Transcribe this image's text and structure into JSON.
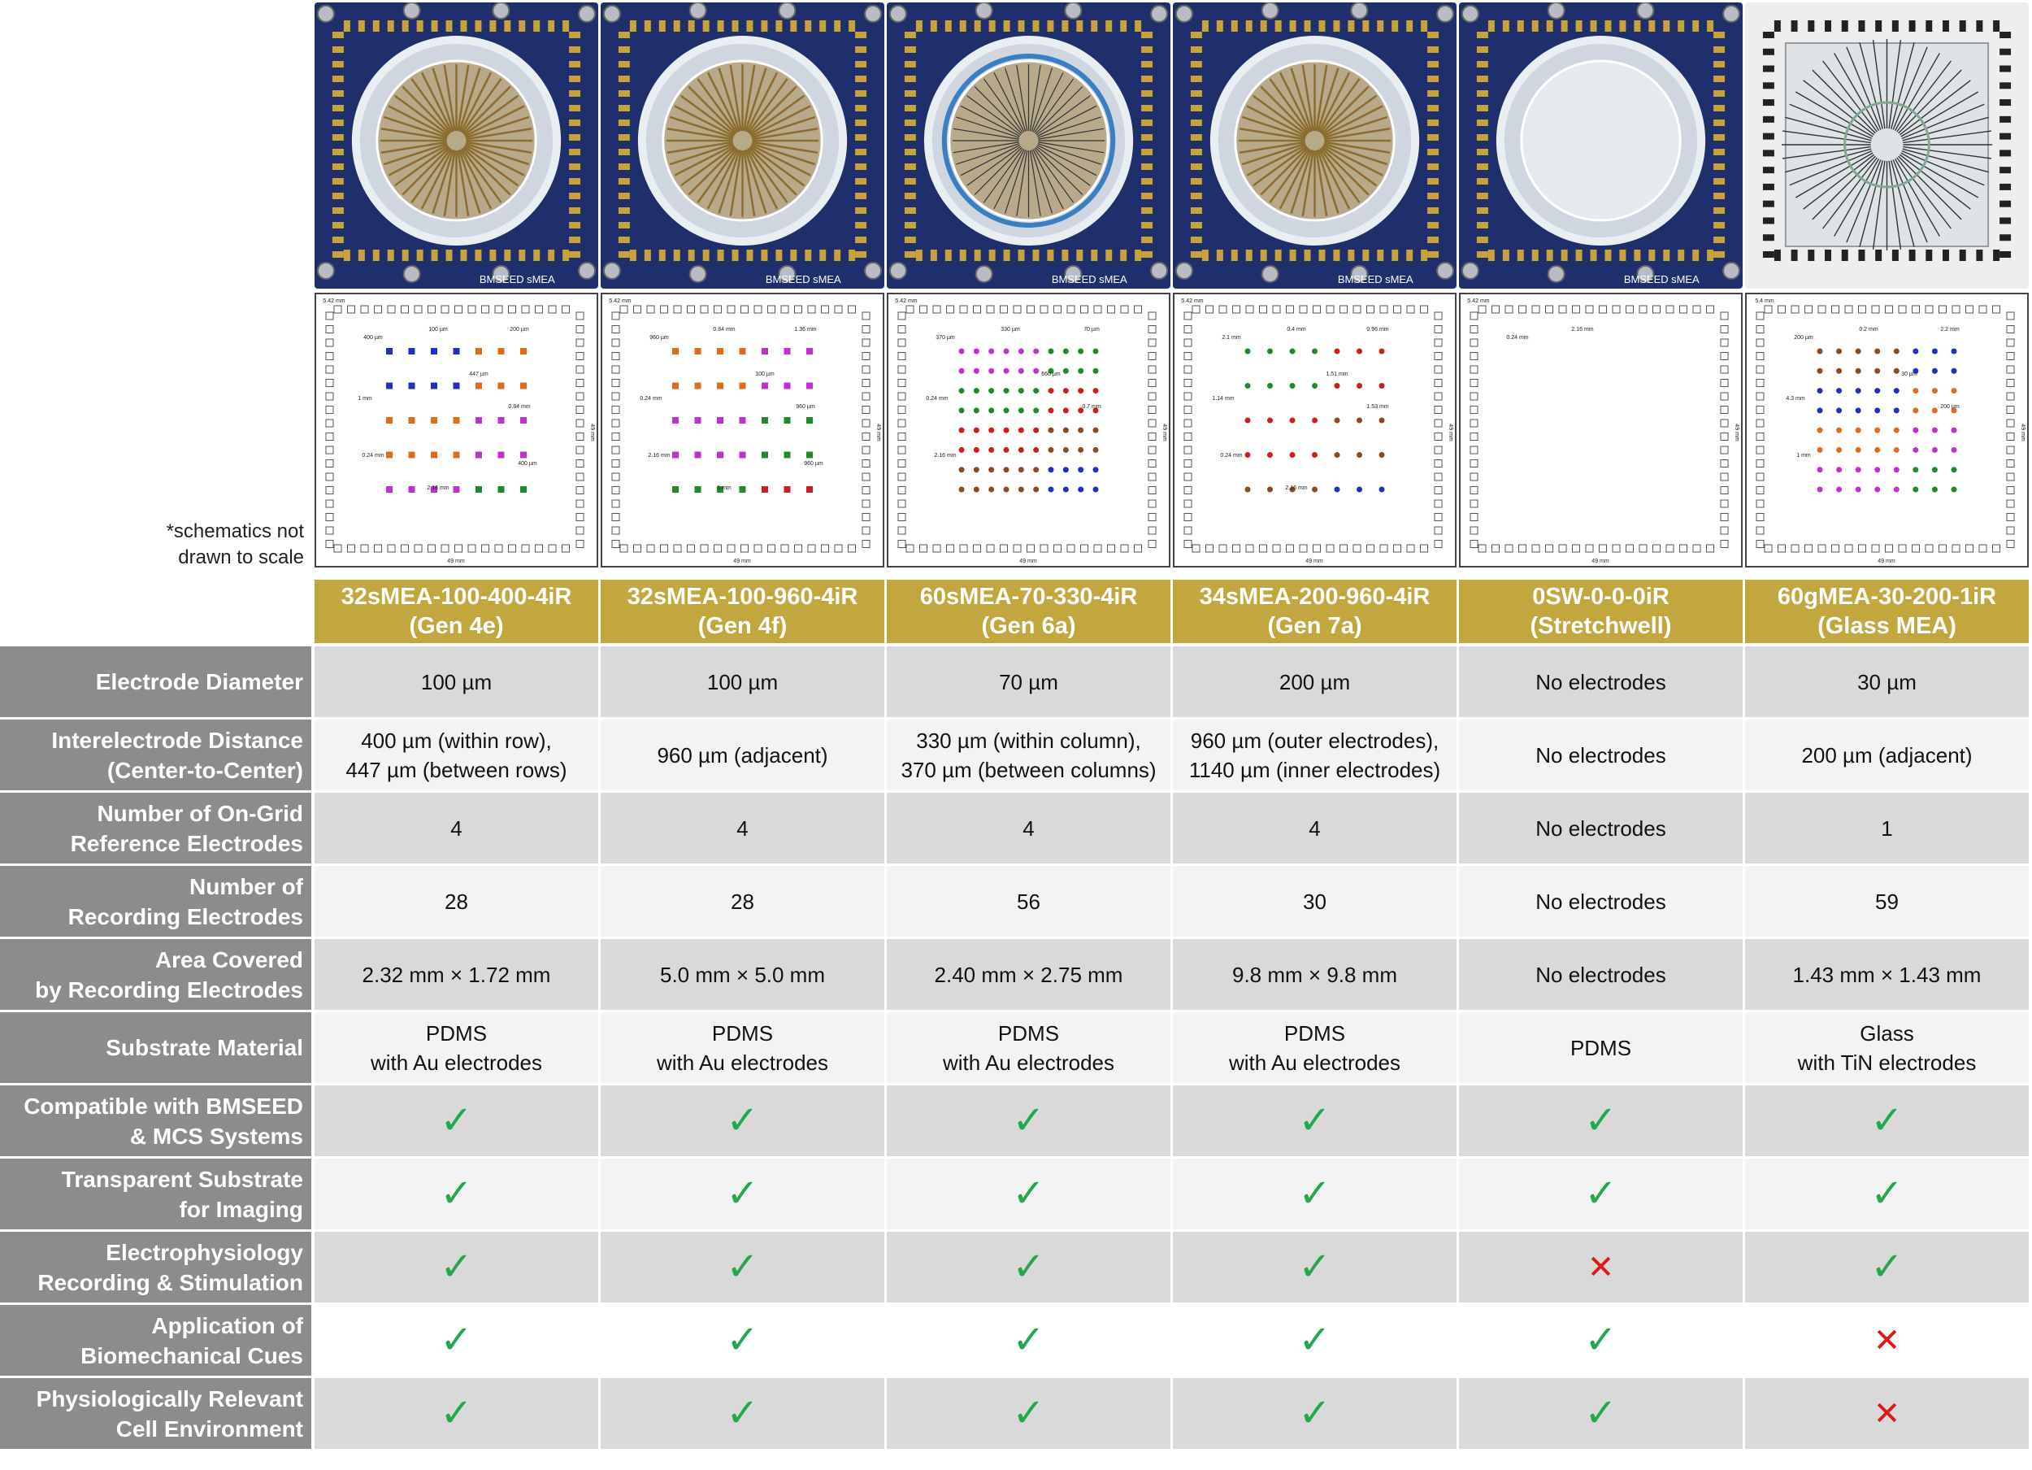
{
  "note": {
    "line1": "*schematics not",
    "line2": "drawn to scale"
  },
  "photos": [
    {
      "label": "BMSEED sMEA",
      "kind": "pdms"
    },
    {
      "label": "BMSEED sMEA",
      "kind": "pdms"
    },
    {
      "label": "BMSEED sMEA",
      "kind": "pdms-fine"
    },
    {
      "label": "BMSEED sMEA",
      "kind": "pdms-y"
    },
    {
      "label": "BMSEED sMEA",
      "kind": "stretch"
    },
    {
      "label": "",
      "kind": "glass"
    }
  ],
  "schematics": [
    {
      "top_dim": "5.42 mm",
      "side_dim": "49 mm",
      "bottom_dim": "49 mm",
      "labels": [
        "400 µm",
        "100 µm",
        "200 µm",
        "447 µm",
        "0.84 mm",
        "1 mm",
        "0.24 mm",
        "2.16 mm",
        "400 µm"
      ]
    },
    {
      "top_dim": "5.42 mm",
      "side_dim": "49 mm",
      "bottom_dim": "49 mm",
      "labels": [
        "960 µm",
        "0.84 mm",
        "1.36 mm",
        "100 µm",
        "960 µm",
        "0.24 mm",
        "2.16 mm",
        "1 mm",
        "960 µm"
      ]
    },
    {
      "top_dim": "5.42 mm",
      "side_dim": "49 mm",
      "bottom_dim": "49 mm",
      "labels": [
        "370 µm",
        "330 µm",
        "70 µm",
        "660 µm",
        "0.7 mm",
        "0.24 mm",
        "2.16 mm"
      ]
    },
    {
      "top_dim": "5.42 mm",
      "side_dim": "49 mm",
      "bottom_dim": "49 mm",
      "labels": [
        "2.1 mm",
        "0.4 mm",
        "0.96 mm",
        "1.51 mm",
        "1.53 mm",
        "1.14 mm",
        "0.24 mm",
        "2.16 mm"
      ]
    },
    {
      "top_dim": "5.42 mm",
      "side_dim": "49 mm",
      "bottom_dim": "49 mm",
      "labels": [
        "0.24 mm",
        "2.16 mm"
      ]
    },
    {
      "top_dim": "5.4 mm",
      "side_dim": "49 mm",
      "bottom_dim": "49 mm",
      "labels": [
        "200 µm",
        "0.2 mm",
        "2.2 mm",
        "30 µm",
        "200 µm",
        "4.3 mm",
        "1 mm"
      ]
    }
  ],
  "columns": [
    {
      "name": "32sMEA-100-400-4iR",
      "gen": "(Gen 4e)"
    },
    {
      "name": "32sMEA-100-960-4iR",
      "gen": "(Gen 4f)"
    },
    {
      "name": "60sMEA-70-330-4iR",
      "gen": "(Gen 6a)"
    },
    {
      "name": "34sMEA-200-960-4iR",
      "gen": "(Gen 7a)"
    },
    {
      "name": "0SW-0-0-0iR",
      "gen": "(Stretchwell)"
    },
    {
      "name": "60gMEA-30-200-1iR",
      "gen": "(Glass MEA)"
    }
  ],
  "rows": [
    {
      "label": [
        "Electrode Diameter"
      ],
      "cells": [
        [
          "100 µm"
        ],
        [
          "100 µm"
        ],
        [
          "70 µm"
        ],
        [
          "200 µm"
        ],
        [
          "No electrodes"
        ],
        [
          "30 µm"
        ]
      ]
    },
    {
      "label": [
        "Interelectrode Distance",
        "(Center-to-Center)"
      ],
      "cells": [
        [
          "400 µm (within row),",
          "447 µm (between rows)"
        ],
        [
          "960 µm (adjacent)"
        ],
        [
          "330 µm (within column),",
          "370 µm (between columns)"
        ],
        [
          "960 µm (outer electrodes),",
          "1140 µm (inner electrodes)"
        ],
        [
          "No electrodes"
        ],
        [
          "200 µm (adjacent)"
        ]
      ]
    },
    {
      "label": [
        "Number of On-Grid",
        "Reference Electrodes"
      ],
      "cells": [
        [
          "4"
        ],
        [
          "4"
        ],
        [
          "4"
        ],
        [
          "4"
        ],
        [
          "No electrodes"
        ],
        [
          "1"
        ]
      ]
    },
    {
      "label": [
        "Number of",
        "Recording Electrodes"
      ],
      "cells": [
        [
          "28"
        ],
        [
          "28"
        ],
        [
          "56"
        ],
        [
          "30"
        ],
        [
          "No electrodes"
        ],
        [
          "59"
        ]
      ]
    },
    {
      "label": [
        "Area Covered",
        "by Recording Electrodes"
      ],
      "cells": [
        [
          "2.32 mm × 1.72 mm"
        ],
        [
          "5.0 mm × 5.0 mm"
        ],
        [
          "2.40 mm × 2.75 mm"
        ],
        [
          "9.8 mm × 9.8 mm"
        ],
        [
          "No electrodes"
        ],
        [
          "1.43 mm × 1.43 mm"
        ]
      ]
    },
    {
      "label": [
        "Substrate Material"
      ],
      "cells": [
        [
          "PDMS",
          "with Au electrodes"
        ],
        [
          "PDMS",
          "with Au electrodes"
        ],
        [
          "PDMS",
          "with Au electrodes"
        ],
        [
          "PDMS",
          "with Au electrodes"
        ],
        [
          "PDMS"
        ],
        [
          "Glass",
          "with TiN electrodes"
        ]
      ]
    },
    {
      "label": [
        "Compatible with BMSEED",
        "& MCS Systems"
      ],
      "marks": [
        "yes",
        "yes",
        "yes",
        "yes",
        "yes",
        "yes"
      ]
    },
    {
      "label": [
        "Transparent Substrate",
        "for Imaging"
      ],
      "marks": [
        "yes",
        "yes",
        "yes",
        "yes",
        "yes",
        "yes"
      ]
    },
    {
      "label": [
        "Electrophysiology",
        "Recording & Stimulation"
      ],
      "marks": [
        "yes",
        "yes",
        "yes",
        "yes",
        "no",
        "yes"
      ]
    },
    {
      "label": [
        "Application of",
        "Biomechanical Cues"
      ],
      "marks": [
        "yes",
        "yes",
        "yes",
        "yes",
        "yes",
        "no"
      ]
    },
    {
      "label": [
        "Physiologically Relevant",
        "Cell Environment"
      ],
      "marks": [
        "yes",
        "yes",
        "yes",
        "yes",
        "yes",
        "no"
      ]
    }
  ],
  "marks": {
    "yes": "✓",
    "no": "✕"
  },
  "colors": {
    "header_gold": "#c2a63e",
    "label_gray": "#8c8c8c",
    "check_green": "#20a84a",
    "cross_red": "#e01818",
    "board_blue": "#1f2f6b",
    "pad_gold": "#c9a33a"
  }
}
